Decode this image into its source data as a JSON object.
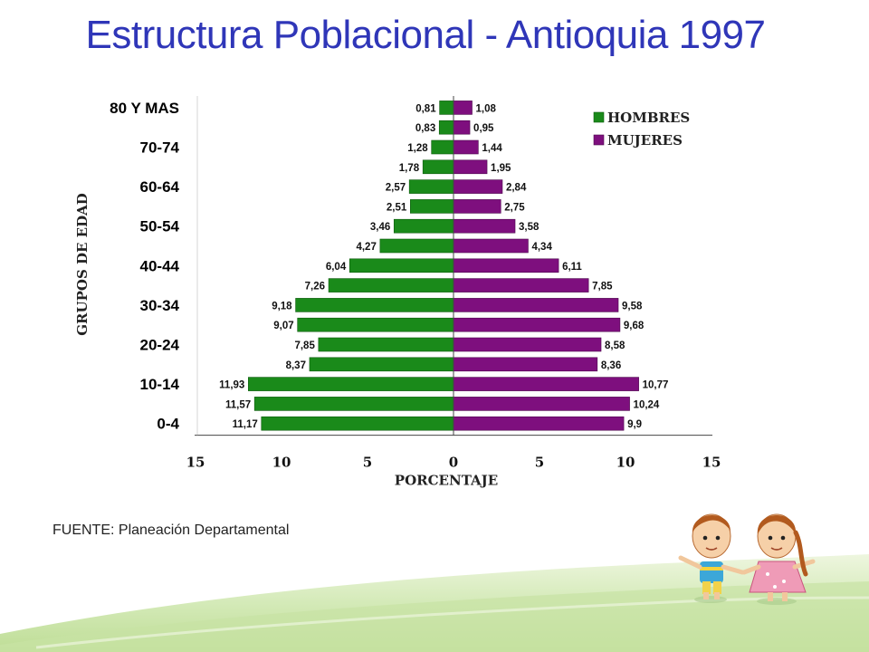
{
  "title": "Estructura Poblacional - Antioquia 1997",
  "source": "FUENTE: Planeación Departamental",
  "colors": {
    "title": "#2f36b8",
    "hombres": "#1a8a1a",
    "mujeres": "#7e0f7e"
  },
  "chart_data": {
    "type": "bar",
    "orientation": "horizontal-population-pyramid",
    "title": "",
    "xlabel": "PORCENTAJE",
    "ylabel": "GRUPOS DE EDAD",
    "xlim": [
      -15,
      15
    ],
    "x_ticks": [
      "15",
      "10",
      "5",
      "0",
      "5",
      "10",
      "15"
    ],
    "y_tick_labels": [
      "80 Y MAS",
      "70-74",
      "60-64",
      "50-54",
      "40-44",
      "30-34",
      "20-24",
      "10-14",
      "0-4"
    ],
    "rows_top_to_bottom": 17,
    "legend": {
      "placement": "top-right",
      "entries": [
        "HOMBRES",
        "MUJERES"
      ]
    },
    "series": [
      {
        "name": "HOMBRES",
        "side": "left",
        "values": [
          0.81,
          0.83,
          1.28,
          1.78,
          2.57,
          2.51,
          3.46,
          4.27,
          6.04,
          7.26,
          9.18,
          9.07,
          7.85,
          8.37,
          11.93,
          11.57,
          11.17
        ],
        "labels": [
          "0,81",
          "0,83",
          "1,28",
          "1,78",
          "2,57",
          "2,51",
          "3,46",
          "4,27",
          "6,04",
          "7,26",
          "9,18",
          "9,07",
          "7,85",
          "8,37",
          "11,93",
          "11,57",
          "11,17"
        ]
      },
      {
        "name": "MUJERES",
        "side": "right",
        "values": [
          1.08,
          0.95,
          1.44,
          1.95,
          2.84,
          2.75,
          3.58,
          4.34,
          6.11,
          7.85,
          9.58,
          9.68,
          8.58,
          8.36,
          10.77,
          10.24,
          9.9
        ],
        "labels": [
          "1,08",
          "0,95",
          "1,44",
          "1,95",
          "2,84",
          "2,75",
          "3,58",
          "4,34",
          "6,11",
          "7,85",
          "9,58",
          "9,68",
          "8,58",
          "8,36",
          "10,77",
          "10,24",
          "9,9"
        ]
      }
    ]
  }
}
